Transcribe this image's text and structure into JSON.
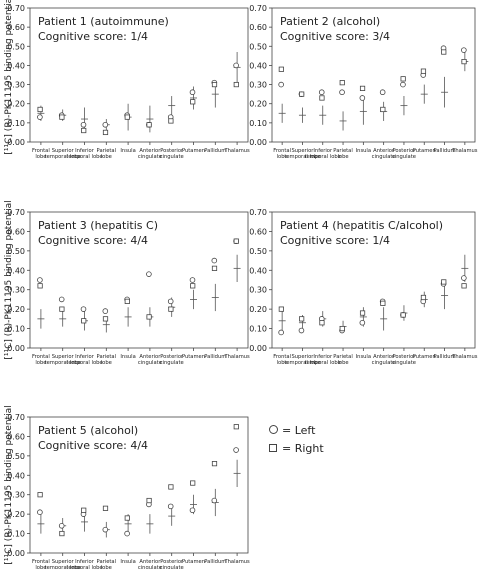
{
  "y_axis_label": "[¹¹C] (R)-PK11195 binding potential",
  "legend": {
    "left": "= Left",
    "right": "= Right"
  },
  "chart_data": [
    {
      "type": "scatter",
      "title": "Patient 1 (autoimmune)",
      "subtitle": "Cognitive score: 1/4",
      "ylabel": "[¹¹C] (R)-PK11195 binding potential",
      "ylim": [
        0,
        0.7
      ],
      "yticks": [
        "0.00",
        "0.10",
        "0.20",
        "0.30",
        "0.40",
        "0.50",
        "0.60",
        "0.70"
      ],
      "categories": [
        "Frontal lobe",
        "Superior temporal lobe",
        "Inferior temporal lobe",
        "Parietal lobe",
        "Insula",
        "Anterior cingulate",
        "Posterior cingulate",
        "Putamen",
        "Pallidum",
        "Thalamus"
      ],
      "left": [
        0.13,
        0.14,
        0.09,
        0.09,
        0.14,
        0.09,
        0.13,
        0.26,
        0.31,
        0.4
      ],
      "right": [
        0.17,
        0.13,
        0.06,
        0.05,
        0.13,
        0.09,
        0.11,
        0.21,
        0.3,
        0.3
      ],
      "mean": [
        0.15,
        0.14,
        0.12,
        0.09,
        0.13,
        0.12,
        0.19,
        0.23,
        0.25,
        0.39
      ],
      "sd": [
        0.04,
        0.03,
        0.06,
        0.03,
        0.07,
        0.07,
        0.05,
        0.06,
        0.07,
        0.08
      ]
    },
    {
      "type": "scatter",
      "title": "Patient 2 (alcohol)",
      "subtitle": "Cognitive score: 3/4",
      "ylim": [
        0,
        0.7
      ],
      "yticks": [
        "0.00",
        "0.10",
        "0.20",
        "0.30",
        "0.40",
        "0.50",
        "0.60",
        "0.70"
      ],
      "categories": [
        "Frontal lobe",
        "Superior temporal lobe",
        "Inferior temporal lobe",
        "Parietal lobe",
        "Insula",
        "Anterior cingulate",
        "Posterior cingulate",
        "Putamen",
        "Pallidum",
        "Thalamus"
      ],
      "left": [
        0.3,
        0.25,
        0.26,
        0.26,
        0.23,
        0.26,
        0.3,
        0.35,
        0.49,
        0.48
      ],
      "right": [
        0.38,
        0.25,
        0.23,
        0.31,
        0.28,
        0.17,
        0.33,
        0.37,
        0.47,
        0.42
      ],
      "mean": [
        0.15,
        0.14,
        0.14,
        0.11,
        0.16,
        0.16,
        0.19,
        0.25,
        0.26,
        0.42
      ],
      "sd": [
        0.05,
        0.04,
        0.05,
        0.05,
        0.07,
        0.05,
        0.05,
        0.05,
        0.08,
        0.05
      ]
    },
    {
      "type": "scatter",
      "title": "Patient 3 (hepatitis C)",
      "subtitle": "Cognitive score: 4/4",
      "ylim": [
        0,
        0.7
      ],
      "yticks": [
        "0.00",
        "0.10",
        "0.20",
        "0.30",
        "0.40",
        "0.50",
        "0.60",
        "0.70"
      ],
      "categories": [
        "Frontal lobe",
        "Superior temporal lobe",
        "Inferior temporal lobe",
        "Parietal lobe",
        "Insula",
        "Anterior cingulate",
        "Posterior cingulate",
        "Putamen",
        "Pallidum",
        "Thalamus"
      ],
      "left": [
        0.35,
        0.25,
        0.2,
        0.19,
        0.25,
        0.38,
        0.24,
        0.35,
        0.45,
        0.55
      ],
      "right": [
        0.32,
        0.2,
        0.14,
        0.15,
        0.24,
        0.16,
        0.2,
        0.32,
        0.41,
        0.55
      ],
      "mean": [
        0.15,
        0.15,
        0.14,
        0.12,
        0.16,
        0.16,
        0.21,
        0.25,
        0.26,
        0.41
      ],
      "sd": [
        0.05,
        0.04,
        0.05,
        0.04,
        0.05,
        0.05,
        0.05,
        0.05,
        0.07,
        0.07
      ]
    },
    {
      "type": "scatter",
      "title": "Patient 4 (hepatitis C/alcohol)",
      "subtitle": "Cognitive score: 1/4",
      "ylim": [
        0,
        0.7
      ],
      "yticks": [
        "0.00",
        "0.10",
        "0.20",
        "0.30",
        "0.40",
        "0.50",
        "0.60",
        "0.70"
      ],
      "categories": [
        "Frontal lobe",
        "Superior temporal lobe",
        "Inferior temporal lobe",
        "Parietal lobe",
        "Insula",
        "Anterior cingulate",
        "Posterior cingulate",
        "Putamen",
        "Pallidum",
        "Thalamus"
      ],
      "left": [
        0.08,
        0.09,
        0.15,
        0.09,
        0.13,
        0.24,
        0.17,
        0.24,
        0.33,
        0.36
      ],
      "right": [
        0.2,
        0.15,
        0.13,
        0.1,
        0.18,
        0.23,
        0.17,
        0.26,
        0.34,
        0.32
      ],
      "mean": [
        0.14,
        0.13,
        0.15,
        0.11,
        0.16,
        0.15,
        0.18,
        0.25,
        0.27,
        0.41
      ],
      "sd": [
        0.05,
        0.04,
        0.04,
        0.03,
        0.05,
        0.06,
        0.04,
        0.04,
        0.07,
        0.07
      ]
    },
    {
      "type": "scatter",
      "title": "Patient 5 (alcohol)",
      "subtitle": "Cognitive score: 4/4",
      "ylim": [
        0,
        0.7
      ],
      "yticks": [
        "0.00",
        "0.10",
        "0.20",
        "0.30",
        "0.40",
        "0.50",
        "0.60",
        "0.70"
      ],
      "categories": [
        "Frontal lobe",
        "Superior temporal lobe",
        "Inferior temporal lobe",
        "Parietal lobe",
        "Insula",
        "Anterior cingulate",
        "Posterior cingulate",
        "Putamen",
        "Pallidum",
        "Thalamus"
      ],
      "left": [
        0.21,
        0.14,
        0.2,
        0.12,
        0.1,
        0.25,
        0.24,
        0.22,
        0.27,
        0.53
      ],
      "right": [
        0.3,
        0.1,
        0.22,
        0.23,
        0.18,
        0.27,
        0.34,
        0.36,
        0.46,
        0.65
      ],
      "mean": [
        0.15,
        0.14,
        0.16,
        0.12,
        0.15,
        0.15,
        0.19,
        0.25,
        0.26,
        0.41
      ],
      "sd": [
        0.05,
        0.04,
        0.05,
        0.04,
        0.05,
        0.05,
        0.05,
        0.05,
        0.07,
        0.07
      ]
    }
  ]
}
